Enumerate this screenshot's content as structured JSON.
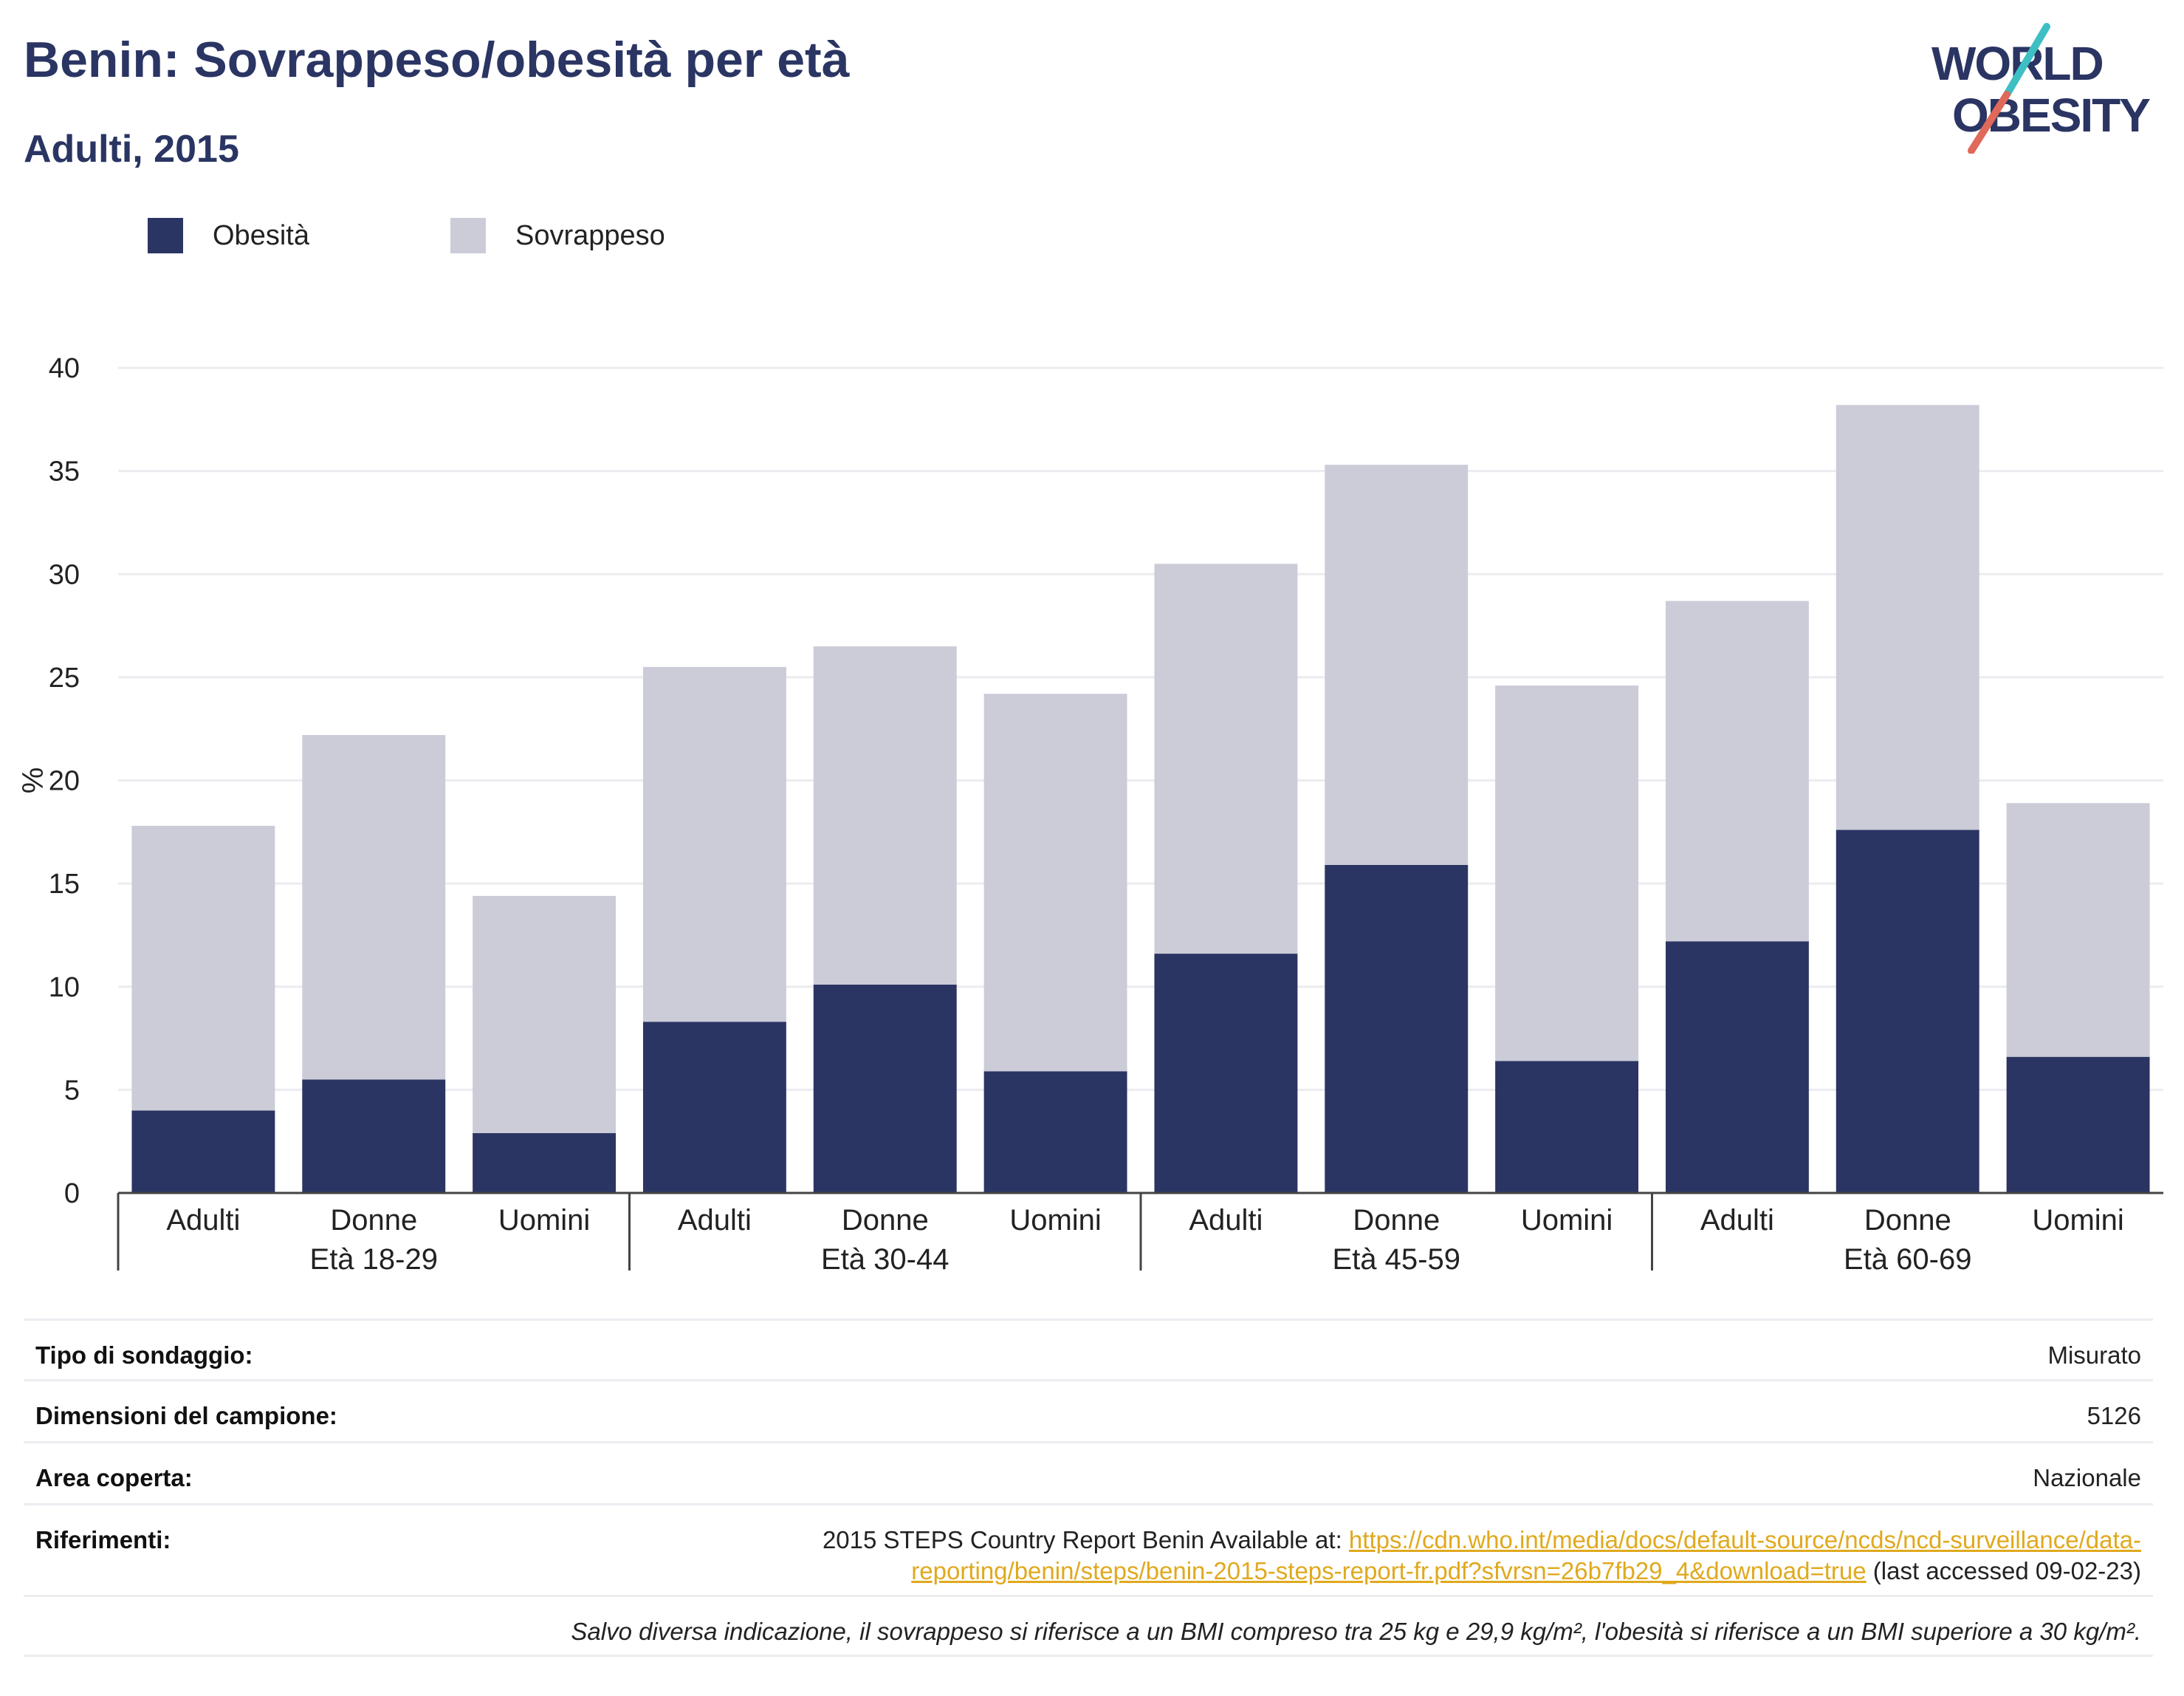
{
  "header": {
    "title": "Benin: Sovrappeso/obesità per età",
    "subtitle": "Adulti, 2015"
  },
  "logo": {
    "line1": "WORLD",
    "line2": "OBESITY",
    "accent_colors": [
      "#3dbfc4",
      "#e0695a"
    ],
    "text_color": "#2a3563"
  },
  "colors": {
    "obesity": "#2a3563",
    "overweight": "#cbccd8",
    "link": "#e0a91d"
  },
  "chart_data": {
    "type": "bar",
    "stacked": true,
    "ylabel": "%",
    "ylim": [
      0,
      40
    ],
    "yticks": [
      0,
      5,
      10,
      15,
      20,
      25,
      30,
      35,
      40
    ],
    "grid": true,
    "legend_position": "top-left",
    "groups": [
      "Età 18-29",
      "Età 30-44",
      "Età 45-59",
      "Età 60-69"
    ],
    "categories": [
      "Adulti",
      "Donne",
      "Uomini",
      "Adulti",
      "Donne",
      "Uomini",
      "Adulti",
      "Donne",
      "Uomini",
      "Adulti",
      "Donne",
      "Uomini"
    ],
    "series": [
      {
        "name": "Obesità",
        "values": [
          4.0,
          5.5,
          2.9,
          8.3,
          10.1,
          5.9,
          11.6,
          15.9,
          6.4,
          12.2,
          17.6,
          6.6
        ]
      },
      {
        "name": "Sovrappeso",
        "values": [
          13.8,
          16.7,
          11.5,
          17.2,
          16.4,
          18.3,
          18.9,
          19.4,
          18.2,
          16.5,
          20.6,
          12.3
        ]
      }
    ]
  },
  "info": {
    "survey_label": "Tipo di sondaggio:",
    "survey_value": "Misurato",
    "sample_label": "Dimensioni del campione:",
    "sample_value": "5126",
    "area_label": "Area coperta:",
    "area_value": "Nazionale",
    "refs_label": "Riferimenti:",
    "refs_prefix": "2015 STEPS Country Report Benin Available at: ",
    "refs_link_line1": "https://cdn.who.int/media/docs/default-source/ncds/ncd-surveillance/data-",
    "refs_link_line2": "reporting/benin/steps/benin-2015-steps-report-fr.pdf?sfvrsn=26b7fb29_4&download=true",
    "refs_suffix": " (last accessed 09-02-23)",
    "note": "Salvo diversa indicazione, il sovrappeso si riferisce a un BMI compreso tra 25 kg e 29,9 kg/m², l'obesità si riferisce a un BMI superiore a 30 kg/m²."
  }
}
